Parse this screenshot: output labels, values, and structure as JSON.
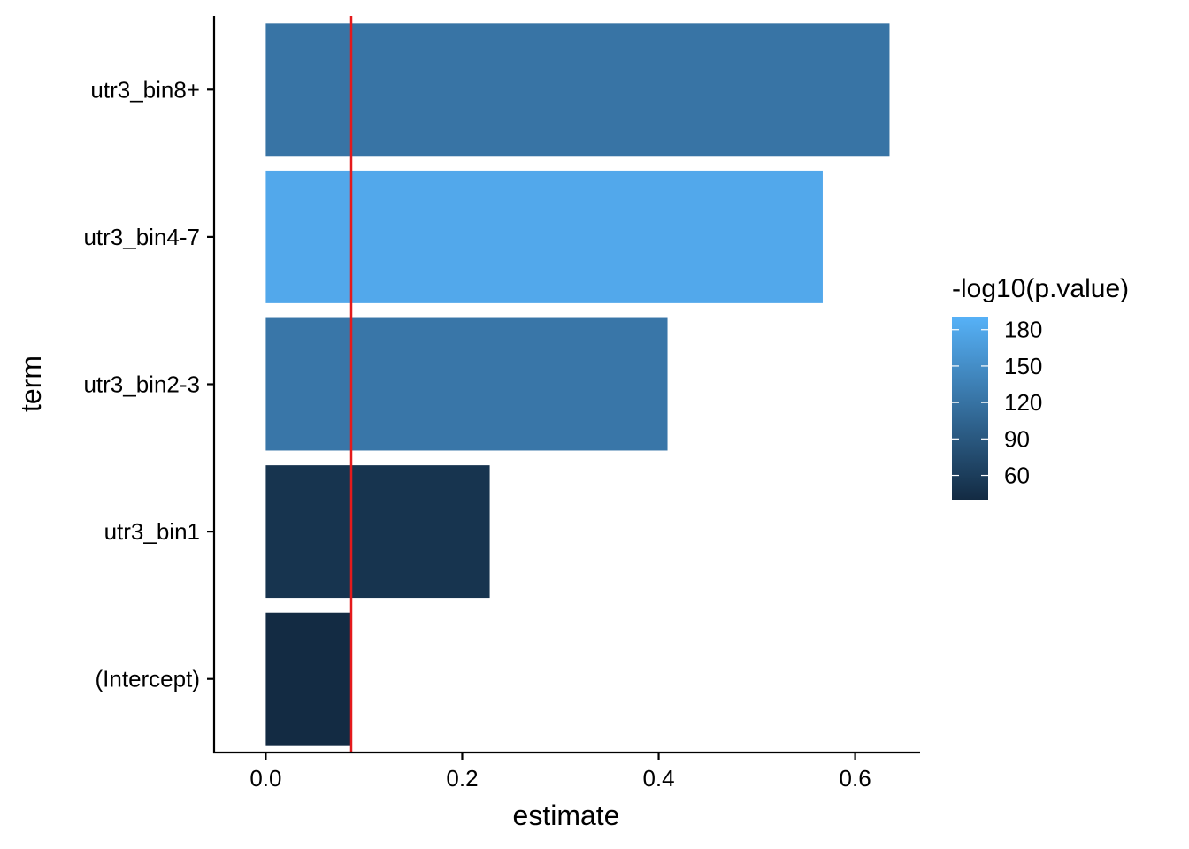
{
  "chart_data": {
    "type": "bar",
    "orientation": "horizontal",
    "xlabel": "estimate",
    "ylabel": "term",
    "xlim": [
      -0.0526,
      0.6661
    ],
    "x_ticks": [
      0.0,
      0.2,
      0.4,
      0.6
    ],
    "x_tick_labels": [
      "0.0",
      "0.2",
      "0.4",
      "0.6"
    ],
    "categories": [
      "utr3_bin8+",
      "utr3_bin4-7",
      "utr3_bin2-3",
      "utr3_bin1",
      "(Intercept)"
    ],
    "values": [
      0.635,
      0.567,
      0.409,
      0.228,
      0.087
    ],
    "fill_values": [
      122,
      180,
      124,
      50,
      40
    ],
    "fill_variable": "-log10(p.value)",
    "reference_line": {
      "x": 0.087,
      "color": "#e41a1c"
    },
    "grid": false,
    "legend": {
      "title": "-log10(p.value)",
      "placement": "right",
      "type": "colorbar",
      "range": [
        40,
        190
      ],
      "ticks": [
        60,
        90,
        120,
        150,
        180
      ],
      "tick_labels": [
        "60",
        "90",
        "120",
        "150",
        "180"
      ],
      "low_color": "#132B43",
      "high_color": "#56B1F7"
    }
  }
}
